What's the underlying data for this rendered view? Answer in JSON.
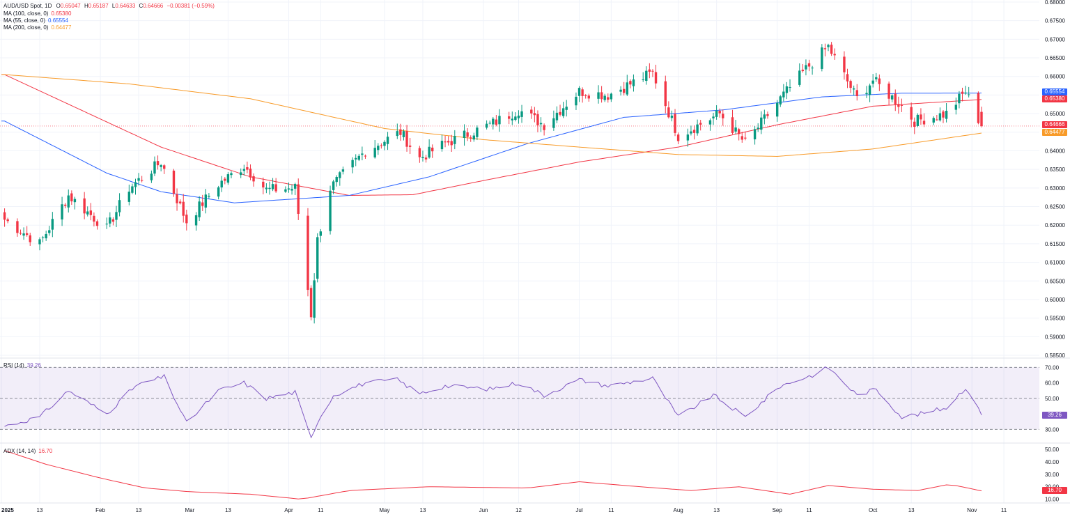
{
  "header": {
    "symbol": "AUD/USD Spot, 1D",
    "open_label": "O",
    "open": "0.65047",
    "high_label": "H",
    "high": "0.65187",
    "low_label": "L",
    "low": "0.64633",
    "close_label": "C",
    "close": "0.64666",
    "change": "−0.00381 (−0.59%)"
  },
  "ma_legend": [
    {
      "label": "MA (100, close, 0)",
      "value": "0.65380",
      "color": "#f23645"
    },
    {
      "label": "MA (55, close, 0)",
      "value": "0.65554",
      "color": "#2962ff"
    },
    {
      "label": "MA (200, close, 0)",
      "value": "0.64477",
      "color": "#f89b29"
    }
  ],
  "price_tags": [
    {
      "value": "0.65554",
      "color": "#2962ff"
    },
    {
      "value": "0.65380",
      "color": "#f23645"
    },
    {
      "value": "0.64666",
      "color": "#f23645"
    },
    {
      "value": "0.64477",
      "color": "#f89b29"
    }
  ],
  "rsi_legend": {
    "label": "RSI (14)",
    "value": "39.26"
  },
  "adx_legend": {
    "label": "ADX (14, 14)",
    "value": "16.70"
  },
  "colors": {
    "up": "#089981",
    "down": "#f23645",
    "ma100": "#f23645",
    "ma55": "#2962ff",
    "ma200": "#f89b29",
    "rsi": "#7e57c2",
    "adx": "#f23645"
  },
  "chart_data": [
    {
      "type": "candlestick",
      "title": "AUD/USD Spot, 1D",
      "ylim": [
        0.585,
        0.68
      ],
      "yticks": [
        "0.58500",
        "0.59000",
        "0.59500",
        "0.60000",
        "0.60500",
        "0.61000",
        "0.61500",
        "0.62000",
        "0.62500",
        "0.63000",
        "0.63500",
        "0.64000",
        "0.64500",
        "0.65000",
        "0.65500",
        "0.66000",
        "0.66500",
        "0.67000",
        "0.67500",
        "0.68000"
      ],
      "xticks": [
        "2025",
        "13",
        "Feb",
        "13",
        "Mar",
        "13",
        "Apr",
        "11",
        "May",
        "13",
        "Jun",
        "12",
        "Jul",
        "11",
        "Aug",
        "13",
        "Sep",
        "11",
        "Oct",
        "13",
        "Nov",
        "11"
      ],
      "close_anchors": [
        [
          "2025-01-02",
          0.6215
        ],
        [
          "2025-01-13",
          0.615
        ],
        [
          "2025-01-22",
          0.628
        ],
        [
          "2025-02-03",
          0.619
        ],
        [
          "2025-02-10",
          0.63
        ],
        [
          "2025-02-20",
          0.637
        ],
        [
          "2025-02-28",
          0.621
        ],
        [
          "2025-03-10",
          0.631
        ],
        [
          "2025-03-18",
          0.636
        ],
        [
          "2025-03-25",
          0.6295
        ],
        [
          "2025-04-03",
          0.63
        ],
        [
          "2025-04-08",
          0.596
        ],
        [
          "2025-04-10",
          0.616
        ],
        [
          "2025-04-14",
          0.63
        ],
        [
          "2025-04-25",
          0.64
        ],
        [
          "2025-05-06",
          0.645
        ],
        [
          "2025-05-12",
          0.638
        ],
        [
          "2025-05-20",
          0.642
        ],
        [
          "2025-06-03",
          0.647
        ],
        [
          "2025-06-12",
          0.651
        ],
        [
          "2025-06-20",
          0.647
        ],
        [
          "2025-07-01",
          0.656
        ],
        [
          "2025-07-10",
          0.655
        ],
        [
          "2025-07-24",
          0.661
        ],
        [
          "2025-08-01",
          0.644
        ],
        [
          "2025-08-14",
          0.65
        ],
        [
          "2025-08-22",
          0.642
        ],
        [
          "2025-09-02",
          0.654
        ],
        [
          "2025-09-10",
          0.662
        ],
        [
          "2025-09-17",
          0.668
        ],
        [
          "2025-09-26",
          0.654
        ],
        [
          "2025-10-01",
          0.659
        ],
        [
          "2025-10-10",
          0.652
        ],
        [
          "2025-10-14",
          0.648
        ],
        [
          "2025-10-24",
          0.65
        ],
        [
          "2025-10-30",
          0.656
        ],
        [
          "2025-11-04",
          0.6466
        ]
      ],
      "last_candle": {
        "date": "2025-11-04",
        "open": 0.65047,
        "high": 0.65187,
        "low": 0.64633,
        "close": 0.64666
      },
      "series": [
        {
          "name": "MA (100, close, 0)",
          "anchors": [
            [
              "2025-01-02",
              0.6605
            ],
            [
              "2025-02-20",
              0.641
            ],
            [
              "2025-03-20",
              0.633
            ],
            [
              "2025-04-20",
              0.628
            ],
            [
              "2025-05-10",
              0.6282
            ],
            [
              "2025-06-01",
              0.632
            ],
            [
              "2025-07-01",
              0.637
            ],
            [
              "2025-08-01",
              0.641
            ],
            [
              "2025-09-01",
              0.647
            ],
            [
              "2025-10-01",
              0.652
            ],
            [
              "2025-11-04",
              0.6538
            ]
          ]
        },
        {
          "name": "MA (55, close, 0)",
          "anchors": [
            [
              "2025-01-02",
              0.648
            ],
            [
              "2025-02-03",
              0.634
            ],
            [
              "2025-02-20",
              0.629
            ],
            [
              "2025-03-15",
              0.626
            ],
            [
              "2025-04-20",
              0.628
            ],
            [
              "2025-05-15",
              0.633
            ],
            [
              "2025-06-15",
              0.642
            ],
            [
              "2025-07-15",
              0.649
            ],
            [
              "2025-08-15",
              0.651
            ],
            [
              "2025-09-15",
              0.6545
            ],
            [
              "2025-10-10",
              0.6555
            ],
            [
              "2025-11-04",
              0.65554
            ]
          ]
        },
        {
          "name": "MA (200, close, 0)",
          "anchors": [
            [
              "2025-01-02",
              0.6605
            ],
            [
              "2025-02-10",
              0.658
            ],
            [
              "2025-03-20",
              0.654
            ],
            [
              "2025-05-01",
              0.646
            ],
            [
              "2025-06-01",
              0.643
            ],
            [
              "2025-07-01",
              0.641
            ],
            [
              "2025-08-01",
              0.639
            ],
            [
              "2025-09-01",
              0.6385
            ],
            [
              "2025-10-01",
              0.6405
            ],
            [
              "2025-11-04",
              0.64477
            ]
          ]
        }
      ]
    },
    {
      "type": "line",
      "title": "RSI (14)",
      "ylim": [
        20,
        75
      ],
      "yticks": [
        "70.00",
        "60.00",
        "50.00",
        "30.00"
      ],
      "band": [
        30,
        70
      ],
      "series": [
        {
          "name": "RSI (14)",
          "anchors": [
            [
              "2025-01-02",
              32
            ],
            [
              "2025-01-13",
              38
            ],
            [
              "2025-01-22",
              55
            ],
            [
              "2025-02-03",
              40
            ],
            [
              "2025-02-12",
              58
            ],
            [
              "2025-02-21",
              64
            ],
            [
              "2025-02-28",
              34
            ],
            [
              "2025-03-10",
              55
            ],
            [
              "2025-03-18",
              60
            ],
            [
              "2025-03-25",
              50
            ],
            [
              "2025-04-03",
              54
            ],
            [
              "2025-04-08",
              24
            ],
            [
              "2025-04-10",
              35
            ],
            [
              "2025-04-15",
              52
            ],
            [
              "2025-04-25",
              60
            ],
            [
              "2025-05-05",
              62
            ],
            [
              "2025-05-12",
              53
            ],
            [
              "2025-05-20",
              58
            ],
            [
              "2025-06-03",
              56
            ],
            [
              "2025-06-12",
              60
            ],
            [
              "2025-06-20",
              52
            ],
            [
              "2025-07-01",
              62
            ],
            [
              "2025-07-10",
              58
            ],
            [
              "2025-07-24",
              63
            ],
            [
              "2025-08-01",
              38
            ],
            [
              "2025-08-12",
              52
            ],
            [
              "2025-08-22",
              38
            ],
            [
              "2025-09-02",
              58
            ],
            [
              "2025-09-12",
              65
            ],
            [
              "2025-09-17",
              70
            ],
            [
              "2025-09-26",
              52
            ],
            [
              "2025-10-02",
              56
            ],
            [
              "2025-10-10",
              38
            ],
            [
              "2025-10-16",
              40
            ],
            [
              "2025-10-24",
              44
            ],
            [
              "2025-10-30",
              57
            ],
            [
              "2025-11-04",
              39.26
            ]
          ]
        }
      ]
    },
    {
      "type": "line",
      "title": "ADX (14, 14)",
      "ylim": [
        7,
        55
      ],
      "yticks": [
        "50.00",
        "40.00",
        "30.00",
        "20.00",
        "10.00"
      ],
      "series": [
        {
          "name": "ADX (14, 14)",
          "anchors": [
            [
              "2025-01-02",
              49
            ],
            [
              "2025-01-15",
              38
            ],
            [
              "2025-02-01",
              27
            ],
            [
              "2025-02-15",
              19
            ],
            [
              "2025-03-01",
              16
            ],
            [
              "2025-03-20",
              14
            ],
            [
              "2025-04-05",
              10
            ],
            [
              "2025-04-20",
              17
            ],
            [
              "2025-05-15",
              20
            ],
            [
              "2025-06-15",
              19
            ],
            [
              "2025-07-01",
              24
            ],
            [
              "2025-07-20",
              20
            ],
            [
              "2025-08-05",
              17
            ],
            [
              "2025-08-20",
              20
            ],
            [
              "2025-09-05",
              14
            ],
            [
              "2025-09-17",
              21
            ],
            [
              "2025-10-01",
              18
            ],
            [
              "2025-10-15",
              17
            ],
            [
              "2025-10-25",
              22
            ],
            [
              "2025-11-04",
              16.7
            ]
          ]
        }
      ]
    }
  ]
}
